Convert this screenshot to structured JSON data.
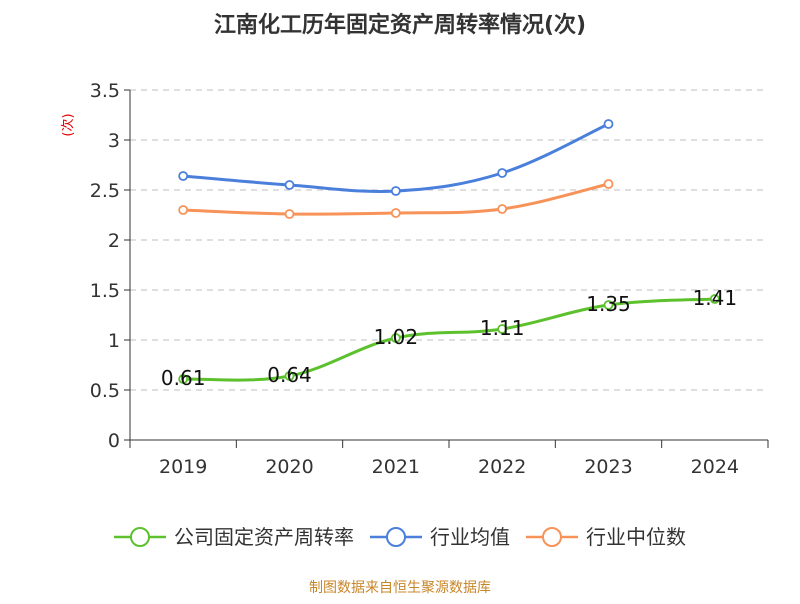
{
  "chart_data": {
    "type": "line",
    "title": "江南化工历年固定资产周转率情况(次)",
    "ylabel": "(次)",
    "xlabel": "",
    "categories": [
      "2019",
      "2020",
      "2021",
      "2022",
      "2023",
      "2024"
    ],
    "ylim": [
      0,
      3.5
    ],
    "yticks": [
      "0",
      "0.5",
      "1",
      "1.5",
      "2",
      "2.5",
      "3",
      "3.5"
    ],
    "ytick_values": [
      0,
      0.5,
      1,
      1.5,
      2,
      2.5,
      3,
      3.5
    ],
    "grid": true,
    "legend_position": "bottom",
    "series": [
      {
        "name": "公司固定资产周转率",
        "color": "#5cc12d",
        "values": [
          0.61,
          0.64,
          1.02,
          1.11,
          1.35,
          1.41
        ],
        "labels": [
          "0.61",
          "0.64",
          "1.02",
          "1.11",
          "1.35",
          "1.41"
        ]
      },
      {
        "name": "行业均值",
        "color": "#4a7fdc",
        "values": [
          2.64,
          2.55,
          2.49,
          2.67,
          3.16,
          null
        ]
      },
      {
        "name": "行业中位数",
        "color": "#f79258",
        "values": [
          2.3,
          2.26,
          2.27,
          2.31,
          2.56,
          null
        ]
      }
    ]
  },
  "footer": {
    "source": "制图数据来自恒生聚源数据库"
  }
}
